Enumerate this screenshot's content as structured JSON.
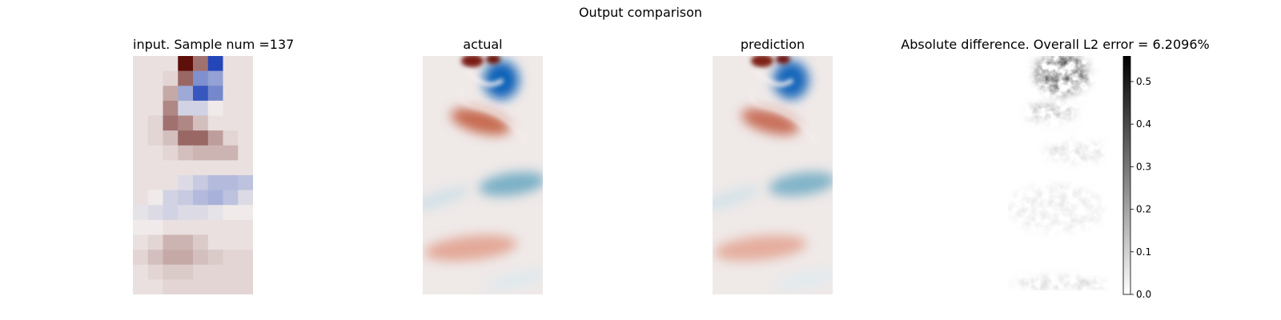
{
  "figure": {
    "suptitle": "Output comparison"
  },
  "chart_data": [
    {
      "type": "heatmap",
      "title": "input. Sample num =137",
      "colormap": "diverging red-white-blue",
      "grid_cols": 8,
      "grid_rows": 16,
      "rows": [
        [
          0.05,
          0.05,
          0.05,
          1.0,
          0.55,
          -1.0,
          0.05,
          0.05
        ],
        [
          0.05,
          0.05,
          0.1,
          0.6,
          -0.55,
          -0.45,
          0.05,
          0.05
        ],
        [
          0.05,
          0.05,
          0.3,
          -0.4,
          -0.9,
          -0.6,
          0.05,
          0.05
        ],
        [
          0.05,
          0.05,
          0.45,
          -0.15,
          -0.15,
          0.0,
          0.05,
          0.05
        ],
        [
          0.05,
          0.1,
          0.55,
          0.45,
          0.2,
          0.05,
          0.05,
          0.05
        ],
        [
          0.05,
          0.1,
          0.2,
          0.6,
          0.6,
          0.35,
          0.1,
          0.05
        ],
        [
          0.05,
          0.05,
          0.1,
          0.2,
          0.25,
          0.25,
          0.25,
          0.05
        ],
        [
          0.05,
          0.05,
          0.05,
          0.05,
          0.05,
          0.05,
          0.05,
          0.05
        ],
        [
          0.05,
          0.05,
          0.05,
          -0.1,
          -0.2,
          -0.3,
          -0.3,
          -0.25
        ],
        [
          0.05,
          0.0,
          -0.15,
          -0.2,
          -0.3,
          -0.35,
          -0.25,
          -0.1
        ],
        [
          -0.05,
          -0.1,
          -0.15,
          -0.1,
          -0.1,
          -0.05,
          0.0,
          0.0
        ],
        [
          0.0,
          0.0,
          0.05,
          0.05,
          0.05,
          0.05,
          0.05,
          0.05
        ],
        [
          0.05,
          0.1,
          0.25,
          0.25,
          0.15,
          0.05,
          0.05,
          0.05
        ],
        [
          0.1,
          0.2,
          0.3,
          0.3,
          0.2,
          0.15,
          0.1,
          0.1
        ],
        [
          0.05,
          0.1,
          0.15,
          0.15,
          0.1,
          0.1,
          0.1,
          0.1
        ],
        [
          0.05,
          0.05,
          0.1,
          0.1,
          0.1,
          0.1,
          0.1,
          0.1
        ]
      ]
    },
    {
      "type": "heatmap",
      "title": "actual",
      "colormap": "diverging red-white-blue"
    },
    {
      "type": "heatmap",
      "title": "prediction",
      "colormap": "diverging red-white-blue"
    },
    {
      "type": "heatmap",
      "title": "Absolute difference. Overall L2 error = 6.2096%",
      "colormap": "gray_r",
      "colorbar": {
        "vmin": 0.0,
        "vmax": 0.56,
        "ticks": [
          "0.0",
          "0.1",
          "0.2",
          "0.3",
          "0.4",
          "0.5"
        ]
      }
    }
  ]
}
